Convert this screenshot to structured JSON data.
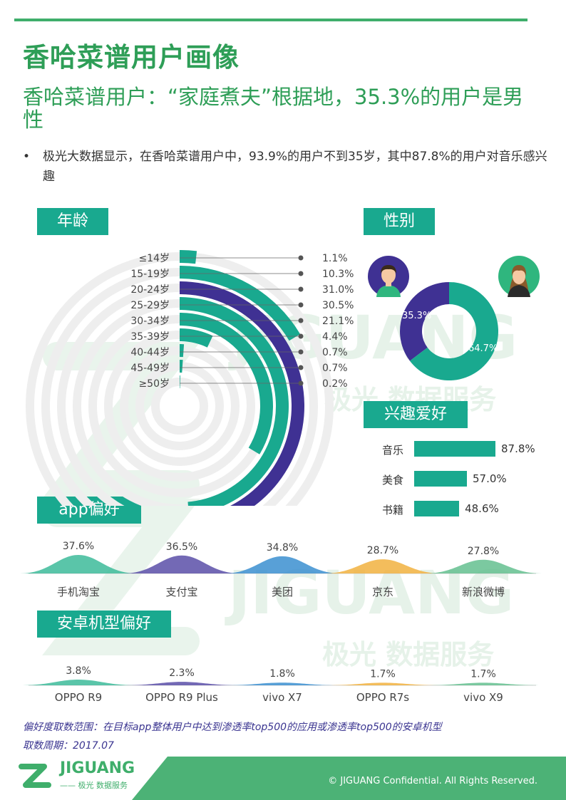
{
  "page": {
    "title": "香哈菜谱用户画像",
    "subtitle": "香哈菜谱用户：“家庭煮夫”根据地，35.3%的用户是男性",
    "bullet_mark": "•",
    "bullet": "极光大数据显示，在香哈菜谱用户中，93.9%的用户不到35岁，其中87.8%的用户对音乐感兴趣"
  },
  "sections": {
    "age": "年龄",
    "gender": "性别",
    "interest": "兴趣爱好",
    "app": "app偏好",
    "phone": "安卓机型偏好"
  },
  "watermark": {
    "brand": "JIGUANG",
    "sub": "极光 数据服务"
  },
  "colors": {
    "teal": "#19a98f",
    "purple": "#3f3193",
    "green": "#2e9e57",
    "ring": "#eeeeee"
  },
  "chart_data": [
    {
      "type": "radial-bar",
      "title": "年龄",
      "categories": [
        "≤14岁",
        "15-19岁",
        "20-24岁",
        "25-29岁",
        "30-34岁",
        "35-39岁",
        "40-44岁",
        "45-49岁",
        "≥50岁"
      ],
      "values": [
        1.1,
        10.3,
        31.0,
        30.5,
        21.1,
        4.4,
        0.7,
        0.7,
        0.2
      ],
      "labels": [
        "1.1%",
        "10.3%",
        "31.0%",
        "30.5%",
        "21.1%",
        "4.4%",
        "0.7%",
        "0.7%",
        "0.2%"
      ],
      "highlight": "20-24岁",
      "max": 31.0
    },
    {
      "type": "pie",
      "title": "性别",
      "categories": [
        "男",
        "女"
      ],
      "values": [
        35.3,
        64.7
      ],
      "labels": [
        "35.3%",
        "64.7%"
      ]
    },
    {
      "type": "bar",
      "title": "兴趣爱好",
      "categories": [
        "音乐",
        "美食",
        "书籍"
      ],
      "values": [
        87.8,
        57.0,
        48.6
      ],
      "labels": [
        "87.8%",
        "57.0%",
        "48.6%"
      ]
    },
    {
      "type": "area",
      "title": "app偏好",
      "categories": [
        "手机淘宝",
        "支付宝",
        "美团",
        "京东",
        "新浪微博"
      ],
      "values": [
        37.6,
        36.5,
        34.8,
        28.7,
        27.8
      ],
      "labels": [
        "37.6%",
        "36.5%",
        "34.8%",
        "28.7%",
        "27.8%"
      ],
      "colors": [
        "#3dbb9a",
        "#5a4fa8",
        "#3b8fd0",
        "#f1b13f",
        "#64c08f"
      ]
    },
    {
      "type": "area",
      "title": "安卓机型偏好",
      "categories": [
        "OPPO R9",
        "OPPO R9 Plus",
        "vivo X7",
        "OPPO R7s",
        "vivo X9"
      ],
      "values": [
        3.8,
        2.3,
        1.8,
        1.7,
        1.7
      ],
      "labels": [
        "3.8%",
        "2.3%",
        "1.8%",
        "1.7%",
        "1.7%"
      ],
      "colors": [
        "#3dbb9a",
        "#5a4fa8",
        "#3b8fd0",
        "#f1b13f",
        "#64c08f"
      ]
    }
  ],
  "footnote": {
    "range": "偏好度取数范围：在目标app整体用户中达到渗透率top500的应用或渗透率top500的安卓机型",
    "period": "取数周期：2017.07"
  },
  "footer": {
    "brand": "JIGUANG",
    "brand_sub": "—— 极光 数据服务",
    "copyright": "© JIGUANG  Confidential. All Rights Reserved."
  }
}
